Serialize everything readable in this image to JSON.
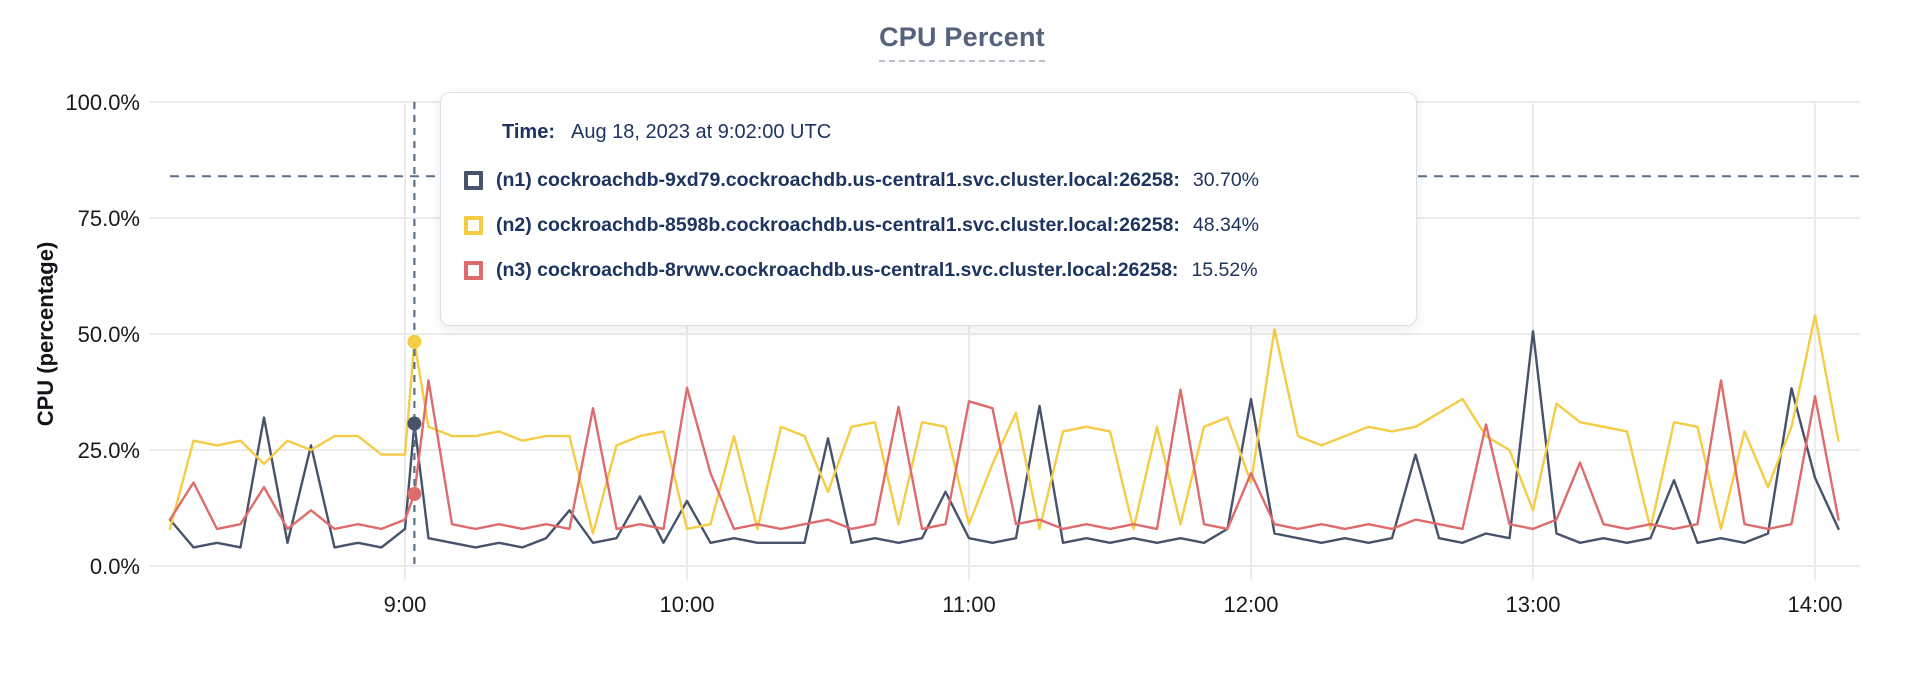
{
  "title": "CPU Percent",
  "y_axis": {
    "label": "CPU (percentage)"
  },
  "tooltip": {
    "time_label": "Time:",
    "time_value": "Aug 18, 2023 at 9:02:00 UTC",
    "rows": [
      {
        "host": "(n1) cockroachdb-9xd79.cockroachdb.us-central1.svc.cluster.local:26258:",
        "value": "30.70%",
        "color": "#46536b"
      },
      {
        "host": "(n2) cockroachdb-8598b.cockroachdb.us-central1.svc.cluster.local:26258:",
        "value": "48.34%",
        "color": "#f5cc45"
      },
      {
        "host": "(n3) cockroachdb-8rvwv.cockroachdb.us-central1.svc.cluster.local:26258:",
        "value": "15.52%",
        "color": "#df6c6c"
      }
    ]
  },
  "colors": {
    "grid": "#ececec",
    "dashed_guides": "#5c7187",
    "title_text": "#55627b",
    "tooltip_text": "#1e3460",
    "axis_text": "#17191d"
  },
  "chart_data": {
    "type": "line",
    "title": "CPU Percent",
    "xlabel": "",
    "ylabel": "CPU (percentage)",
    "ylim": [
      0,
      100
    ],
    "grid": true,
    "legend_position": "hover-tooltip-overlay",
    "y_ticks": [
      {
        "label": "0.0%",
        "value": 0
      },
      {
        "label": "25.0%",
        "value": 25
      },
      {
        "label": "50.0%",
        "value": 50
      },
      {
        "label": "75.0%",
        "value": 75
      },
      {
        "label": "100.0%",
        "value": 100
      }
    ],
    "x_ticks": [
      {
        "label": "9:00",
        "minutes": 540
      },
      {
        "label": "10:00",
        "minutes": 600
      },
      {
        "label": "11:00",
        "minutes": 660
      },
      {
        "label": "12:00",
        "minutes": 720
      },
      {
        "label": "13:00",
        "minutes": 780
      },
      {
        "label": "14:00",
        "minutes": 840
      }
    ],
    "threshold_percent": 84,
    "hover": {
      "minutes": 542,
      "time": "Aug 18, 2023 at 9:02:00 UTC"
    },
    "x_minutes": [
      490,
      495,
      500,
      505,
      510,
      515,
      520,
      525,
      530,
      535,
      540,
      542,
      545,
      550,
      555,
      560,
      565,
      570,
      575,
      580,
      585,
      590,
      595,
      600,
      605,
      610,
      615,
      620,
      625,
      630,
      635,
      640,
      645,
      650,
      655,
      660,
      665,
      670,
      675,
      680,
      685,
      690,
      695,
      700,
      705,
      710,
      715,
      720,
      725,
      730,
      735,
      740,
      745,
      750,
      755,
      760,
      765,
      770,
      775,
      780,
      785,
      790,
      795,
      800,
      805,
      810,
      815,
      820,
      825,
      830,
      835,
      840,
      845
    ],
    "series": [
      {
        "name": "(n1) cockroachdb-9xd79.cockroachdb.us-central1.svc.cluster.local:26258",
        "color": "#46536b",
        "hover_value": 30.7,
        "values": [
          10,
          4,
          5,
          4,
          32,
          5,
          26,
          4,
          5,
          4,
          8,
          30.7,
          6,
          5,
          4,
          5,
          4,
          6,
          12,
          5,
          6,
          15,
          5,
          14,
          5,
          6,
          5,
          5,
          5,
          27.5,
          5,
          6,
          5,
          6,
          16,
          6,
          5,
          6,
          34.5,
          5,
          6,
          5,
          6,
          5,
          6,
          5,
          8,
          36,
          7,
          6,
          5,
          6,
          5,
          6,
          24,
          6,
          5,
          7,
          6,
          50.6,
          7,
          5,
          6,
          5,
          6,
          18.5,
          5,
          6,
          5,
          7,
          38.3,
          19,
          8
        ]
      },
      {
        "name": "(n2) cockroachdb-8598b.cockroachdb.us-central1.svc.cluster.local:26258",
        "color": "#f5cc45",
        "hover_value": 48.34,
        "values": [
          8,
          27,
          26,
          27,
          22,
          27,
          25,
          28,
          28,
          24,
          24,
          48.34,
          30,
          28,
          28,
          29,
          27,
          28,
          28,
          7,
          26,
          28,
          29,
          8,
          9,
          28,
          8,
          30,
          28,
          16,
          30,
          31,
          9,
          31,
          30,
          9,
          22,
          33,
          8,
          29,
          30,
          29,
          8,
          30,
          9,
          30,
          32,
          18,
          51,
          28,
          26,
          28,
          30,
          29,
          30,
          33,
          36,
          28,
          25,
          12,
          35,
          31,
          30,
          29,
          8,
          31,
          30,
          8,
          29,
          17,
          30,
          54,
          27
        ]
      },
      {
        "name": "(n3) cockroachdb-8rvwv.cockroachdb.us-central1.svc.cluster.local:26258",
        "color": "#df6c6c",
        "hover_value": 15.52,
        "values": [
          10,
          18,
          8,
          9,
          17,
          8,
          12,
          8,
          9,
          8,
          10,
          15.52,
          40,
          9,
          8,
          9,
          8,
          9,
          8,
          34,
          8,
          9,
          8,
          38.4,
          20,
          8,
          9,
          8,
          9,
          10,
          8,
          9,
          34.3,
          8,
          9,
          35.5,
          34,
          9,
          10,
          8,
          9,
          8,
          9,
          8,
          38,
          9,
          8,
          20,
          9,
          8,
          9,
          8,
          9,
          8,
          10,
          9,
          8,
          30.5,
          9,
          8,
          10,
          22.3,
          9,
          8,
          9,
          8,
          9,
          40,
          9,
          8,
          9,
          36.6,
          10
        ]
      }
    ]
  }
}
